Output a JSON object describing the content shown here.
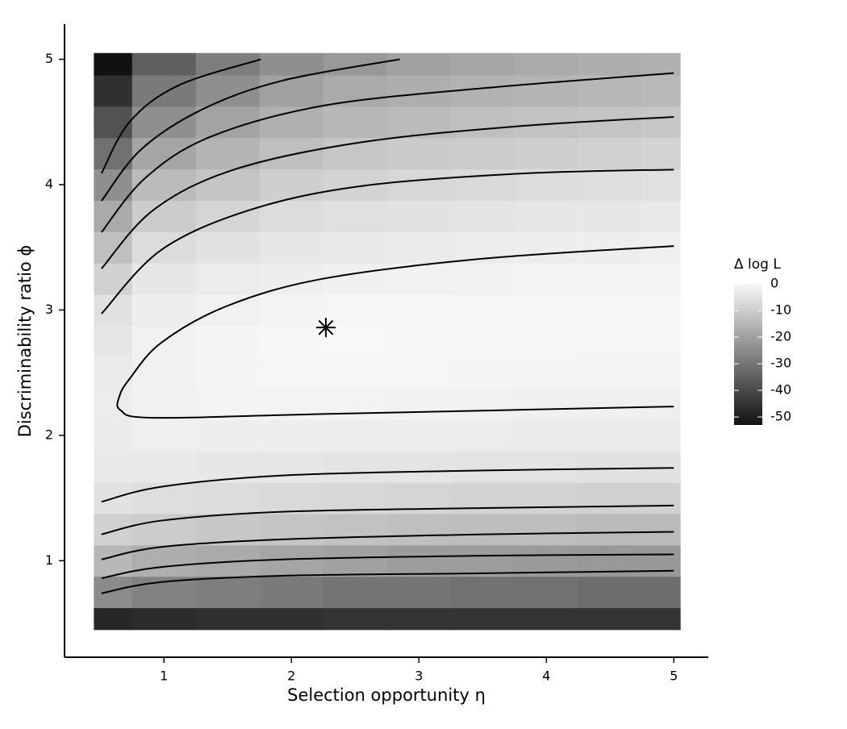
{
  "chart_data": {
    "type": "heatmap",
    "x_label": "Selection opportunity  η",
    "y_label": "Discriminability ratio  ϕ",
    "xlim": [
      0.22,
      5.27
    ],
    "ylim": [
      0.23,
      5.28
    ],
    "xticks": [
      1,
      2,
      3,
      4,
      5
    ],
    "yticks": [
      1,
      2,
      3,
      4,
      5
    ],
    "x": [
      0.5,
      1,
      1.5,
      2,
      2.5,
      3,
      3.5,
      4,
      4.5,
      5
    ],
    "y": [
      0.5,
      0.75,
      1,
      1.25,
      1.5,
      1.75,
      2,
      2.25,
      2.5,
      2.75,
      3,
      3.25,
      3.5,
      3.75,
      4,
      4.25,
      4.5,
      4.75,
      5
    ],
    "z": [
      [
        -48,
        -47,
        -46,
        -46,
        -45,
        -45,
        -45,
        -45,
        -45,
        -45
      ],
      [
        -25,
        -27,
        -28,
        -29,
        -30,
        -30,
        -31,
        -31,
        -32,
        -32
      ],
      [
        -15,
        -17,
        -18,
        -19,
        -20,
        -21,
        -21,
        -21.5,
        -22,
        -22
      ],
      [
        -9,
        -10,
        -11,
        -12,
        -12.5,
        -13,
        -13.5,
        -13.5,
        -14,
        -14
      ],
      [
        -5,
        -6,
        -6.5,
        -7,
        -7.5,
        -8,
        -8.5,
        -8.5,
        -9,
        -9
      ],
      [
        -3.5,
        -3.5,
        -4,
        -4.2,
        -4.5,
        -4.7,
        -4.8,
        -4.9,
        -5,
        -5
      ],
      [
        -3,
        -2,
        -2.2,
        -2.3,
        -2.5,
        -2.6,
        -2.8,
        -2.9,
        -3,
        -3
      ],
      [
        -2.8,
        -1.5,
        -1.2,
        -1.1,
        -1.2,
        -1.4,
        -1.6,
        -1.8,
        -1.9,
        -2
      ],
      [
        -3,
        -1.5,
        -0.8,
        -0.5,
        -0.4,
        -0.5,
        -0.6,
        -0.7,
        -0.9,
        -1
      ],
      [
        -3.8,
        -1.6,
        -0.8,
        -0.3,
        -0.1,
        -0.2,
        -0.3,
        -0.4,
        -0.4,
        -0.5
      ],
      [
        -5.3,
        -2.3,
        -1.5,
        -0.8,
        -0.5,
        -0.4,
        -0.4,
        -0.4,
        -0.5,
        -0.5
      ],
      [
        -9,
        -4,
        -2.8,
        -2.2,
        -1.8,
        -1.5,
        -1.3,
        -1.2,
        -1.1,
        -1
      ],
      [
        -13,
        -6.5,
        -5,
        -4,
        -3.5,
        -3,
        -2.7,
        -2.5,
        -2.2,
        -2
      ],
      [
        -18,
        -10,
        -8,
        -6.5,
        -5.5,
        -5,
        -4.5,
        -4.2,
        -3.8,
        -3.5
      ],
      [
        -24,
        -14,
        -12,
        -9.5,
        -8.5,
        -7.5,
        -7,
        -6.5,
        -6,
        -5.5
      ],
      [
        -31,
        -19,
        -15.5,
        -13,
        -11.5,
        -10.5,
        -10,
        -9.5,
        -9,
        -8.5
      ],
      [
        -38,
        -24,
        -19.5,
        -16.5,
        -15,
        -14,
        -13,
        -12.5,
        -12,
        -11.5
      ],
      [
        -46,
        -29,
        -24,
        -20,
        -18,
        -17,
        -16,
        -15.5,
        -15,
        -14.5
      ],
      [
        -53,
        -35,
        -28,
        -24,
        -22,
        -20,
        -19,
        -18,
        -17,
        -16.5
      ]
    ],
    "colors": [
      "#111111",
      "#f8f8f8"
    ],
    "colorbar": {
      "title": "Δ log L",
      "lim": [
        -53,
        0
      ],
      "ticks": [
        0,
        -10,
        -20,
        -30,
        -40,
        -50
      ]
    },
    "contours": [
      {
        "x": [
          0.51,
          0.73,
          1.11,
          1.76
        ],
        "y": [
          4.09,
          4.5,
          4.79,
          5.0
        ]
      },
      {
        "x": [
          0.51,
          0.82,
          1.3,
          1.93,
          2.85
        ],
        "y": [
          3.87,
          4.28,
          4.6,
          4.83,
          5.0
        ]
      },
      {
        "x": [
          0.51,
          0.85,
          1.36,
          2.25,
          3.51,
          5.0
        ],
        "y": [
          3.62,
          4.05,
          4.38,
          4.63,
          4.77,
          4.89
        ]
      },
      {
        "x": [
          0.51,
          0.92,
          1.55,
          2.56,
          3.83,
          5.0
        ],
        "y": [
          3.33,
          3.8,
          4.12,
          4.34,
          4.47,
          4.54
        ]
      },
      {
        "x": [
          0.51,
          0.98,
          1.68,
          2.56,
          3.83,
          5.0
        ],
        "y": [
          2.97,
          3.48,
          3.8,
          3.99,
          4.09,
          4.12
        ]
      },
      {
        "x": [
          5.0,
          3.51,
          2.25,
          1.49,
          0.98,
          0.73,
          0.65,
          0.66,
          0.92,
          2.25,
          5.0
        ],
        "y": [
          3.51,
          3.41,
          3.25,
          3.03,
          2.74,
          2.45,
          2.31,
          2.2,
          2.14,
          2.17,
          2.23
        ]
      },
      {
        "x": [
          0.51,
          0.98,
          1.93,
          3.51,
          5.0
        ],
        "y": [
          1.47,
          1.59,
          1.68,
          1.72,
          1.74
        ]
      },
      {
        "x": [
          0.51,
          0.98,
          1.93,
          3.51,
          5.0
        ],
        "y": [
          1.21,
          1.32,
          1.39,
          1.42,
          1.44
        ]
      },
      {
        "x": [
          0.51,
          0.98,
          1.93,
          3.51,
          5.0
        ],
        "y": [
          1.01,
          1.11,
          1.17,
          1.21,
          1.23
        ]
      },
      {
        "x": [
          0.51,
          0.98,
          1.93,
          3.51,
          5.0
        ],
        "y": [
          0.86,
          0.95,
          1.01,
          1.04,
          1.05
        ]
      },
      {
        "x": [
          0.51,
          0.98,
          1.93,
          3.51,
          5.0
        ],
        "y": [
          0.74,
          0.83,
          0.88,
          0.9,
          0.92
        ]
      }
    ],
    "marker": {
      "x": 2.27,
      "y": 2.86
    }
  }
}
